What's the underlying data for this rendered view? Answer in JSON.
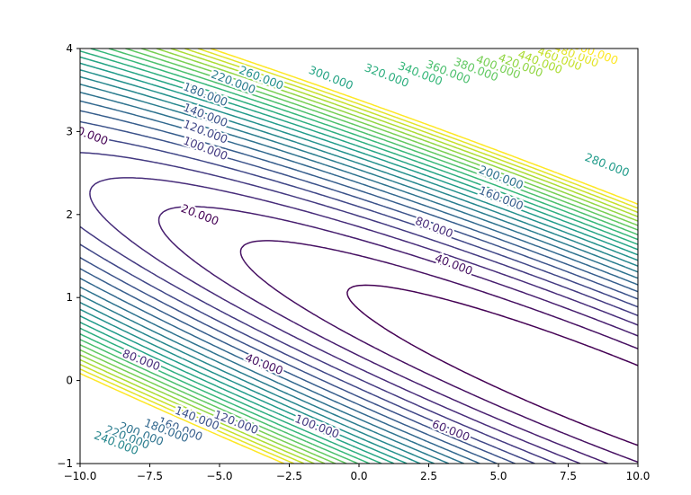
{
  "chart_data": {
    "type": "contour",
    "title": "",
    "xlabel": "",
    "ylabel": "",
    "xlim": [
      -10,
      10
    ],
    "ylim": [
      -1,
      4
    ],
    "x_ticks": [
      "−10.0",
      "−7.5",
      "−5.0",
      "−2.5",
      "0.0",
      "2.5",
      "5.0",
      "7.5",
      "10.0"
    ],
    "y_ticks": [
      "−1",
      "0",
      "1",
      "2",
      "3",
      "4"
    ],
    "colormap": "viridis",
    "level_step": 20,
    "level_max": 500,
    "contour_labels": [
      {
        "text": "20.000",
        "x": -5.7,
        "y": 2.0
      },
      {
        "text": "40.000",
        "x": -3.4,
        "y": 0.2
      },
      {
        "text": "40.000",
        "x": 3.4,
        "y": 1.4
      },
      {
        "text": "60.000",
        "x": 3.3,
        "y": -0.6
      },
      {
        "text": "80.000",
        "x": -7.8,
        "y": 0.25
      },
      {
        "text": "80.000",
        "x": 2.7,
        "y": 1.85
      },
      {
        "text": "0.000",
        "x": -9.55,
        "y": 2.95
      },
      {
        "text": "100.000",
        "x": -5.5,
        "y": 2.8
      },
      {
        "text": "100.000",
        "x": -1.5,
        "y": -0.55
      },
      {
        "text": "120.000",
        "x": -5.5,
        "y": 3.0
      },
      {
        "text": "120.000",
        "x": -4.4,
        "y": -0.5
      },
      {
        "text": "140.000",
        "x": -5.5,
        "y": 3.2
      },
      {
        "text": "140.000",
        "x": -5.8,
        "y": -0.45
      },
      {
        "text": "160.000",
        "x": 5.1,
        "y": 2.2
      },
      {
        "text": "160.000",
        "x": -6.4,
        "y": -0.58
      },
      {
        "text": "180.000",
        "x": -5.5,
        "y": 3.45
      },
      {
        "text": "180.000",
        "x": -6.9,
        "y": -0.6
      },
      {
        "text": "200.000",
        "x": 5.1,
        "y": 2.45
      },
      {
        "text": "200.000",
        "x": -7.8,
        "y": -0.64
      },
      {
        "text": "220.000",
        "x": -4.5,
        "y": 3.6
      },
      {
        "text": "220.000",
        "x": -8.3,
        "y": -0.68
      },
      {
        "text": "240.000",
        "x": -8.7,
        "y": -0.75
      },
      {
        "text": "260.000",
        "x": -3.5,
        "y": 3.65
      },
      {
        "text": "280.000",
        "x": 8.9,
        "y": 2.6
      },
      {
        "text": "300.000",
        "x": -1.0,
        "y": 3.65
      },
      {
        "text": "320.000",
        "x": 1.0,
        "y": 3.68
      },
      {
        "text": "340.000",
        "x": 2.2,
        "y": 3.7
      },
      {
        "text": "360.000",
        "x": 3.2,
        "y": 3.72
      },
      {
        "text": "380.000",
        "x": 4.2,
        "y": 3.75
      },
      {
        "text": "400.000",
        "x": 5.0,
        "y": 3.78
      },
      {
        "text": "420.000",
        "x": 5.8,
        "y": 3.8
      },
      {
        "text": "440.000",
        "x": 6.5,
        "y": 3.84
      },
      {
        "text": "460.000",
        "x": 7.2,
        "y": 3.88
      },
      {
        "text": "480.000",
        "x": 7.8,
        "y": 3.92
      },
      {
        "text": "500.000",
        "x": 8.5,
        "y": 3.95
      }
    ]
  }
}
